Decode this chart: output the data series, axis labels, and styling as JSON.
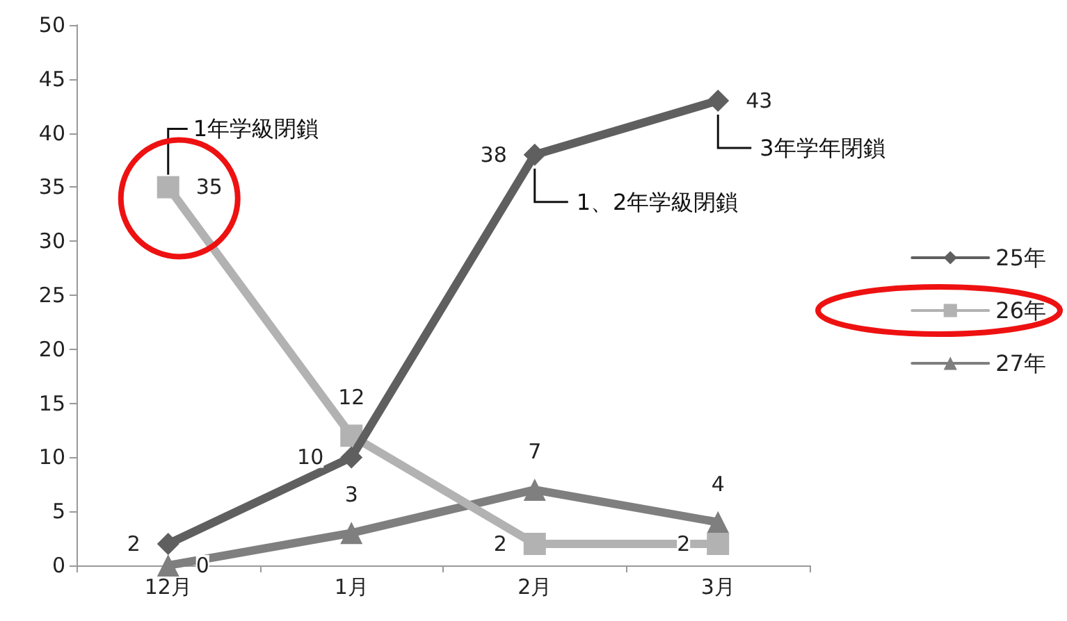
{
  "chart_data": {
    "type": "line",
    "categories": [
      "12月",
      "1月",
      "2月",
      "3月"
    ],
    "series": [
      {
        "name": "25年",
        "color": "#5f5f5f",
        "marker": "diamond",
        "values": [
          2,
          10,
          38,
          43
        ]
      },
      {
        "name": "26年",
        "color": "#b2b2b2",
        "marker": "square",
        "values": [
          35,
          12,
          2,
          2
        ]
      },
      {
        "name": "27年",
        "color": "#7f7f7f",
        "marker": "triangle",
        "values": [
          0,
          3,
          7,
          4
        ]
      }
    ],
    "ylim": [
      0,
      50
    ],
    "yticks": [
      0,
      5,
      10,
      15,
      20,
      25,
      30,
      35,
      40,
      45,
      50
    ],
    "grid": false,
    "legend": "right",
    "data_labels": true,
    "line_style": "solid",
    "annotations": [
      {
        "text": "1年学級閉鎖",
        "x": "12月",
        "y": 35
      },
      {
        "text": "1、2年学級閉鎖",
        "x": "2月",
        "y": 38
      },
      {
        "text": "3年学年閉鎖",
        "x": "3月",
        "y": 43
      }
    ]
  }
}
